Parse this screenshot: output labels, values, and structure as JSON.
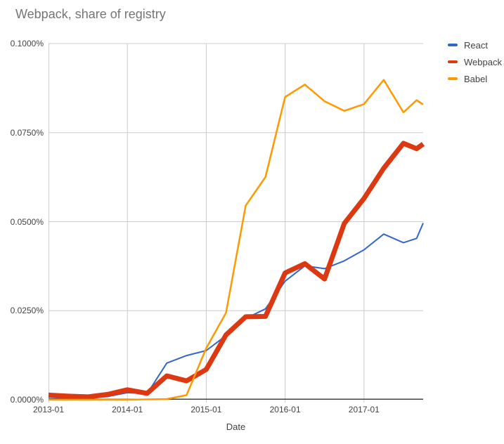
{
  "chart_data": {
    "type": "line",
    "title": "Webpack, share of registry",
    "xlabel": "Date",
    "ylabel": "",
    "legend_position": "right",
    "grid": true,
    "grid_color": "#cccccc",
    "axis_color": "#424242",
    "xlim": [
      2013.0,
      2017.75
    ],
    "ylim": [
      0,
      0.1
    ],
    "y_tick_values": [
      0,
      0.025,
      0.05,
      0.075,
      0.1
    ],
    "y_tick_labels": [
      "0.0000%",
      "0.0250%",
      "0.0500%",
      "0.0750%",
      "0.1000%"
    ],
    "x_tick_values": [
      2013,
      2014,
      2015,
      2016,
      2017
    ],
    "x_tick_labels": [
      "2013-01",
      "2014-01",
      "2015-01",
      "2016-01",
      "2017-01"
    ],
    "categories": [
      "2013-01",
      "2013-04",
      "2013-07",
      "2013-10",
      "2014-01",
      "2014-04",
      "2014-07",
      "2014-10",
      "2015-01",
      "2015-04",
      "2015-07",
      "2015-10",
      "2016-01",
      "2016-04",
      "2016-07",
      "2016-10",
      "2017-01",
      "2017-04",
      "2017-07",
      "2017-09",
      "2017-10"
    ],
    "x": [
      2013.0,
      2013.25,
      2013.5,
      2013.75,
      2014.0,
      2014.25,
      2014.5,
      2014.75,
      2015.0,
      2015.25,
      2015.5,
      2015.75,
      2016.0,
      2016.25,
      2016.5,
      2016.75,
      2017.0,
      2017.25,
      2017.5,
      2017.667,
      2017.75
    ],
    "y_unit": "percent of registry",
    "series": [
      {
        "name": "React",
        "color": "#3366cc",
        "width": 2,
        "values": [
          0.0003,
          0.0003,
          0.0004,
          0.0009,
          0.002,
          0.0017,
          0.0103,
          0.0124,
          0.0138,
          0.018,
          0.0228,
          0.0255,
          0.0333,
          0.0376,
          0.0368,
          0.039,
          0.0421,
          0.0465,
          0.0441,
          0.0453,
          0.0496
        ]
      },
      {
        "name": "Webpack",
        "color": "#dc3912",
        "width": 7,
        "values": [
          0.0013,
          0.001,
          0.0008,
          0.0015,
          0.0028,
          0.0018,
          0.0067,
          0.0053,
          0.0085,
          0.0182,
          0.0233,
          0.0234,
          0.0356,
          0.0382,
          0.0339,
          0.0495,
          0.0565,
          0.065,
          0.072,
          0.0705,
          0.0718
        ]
      },
      {
        "name": "Babel",
        "color": "#ff9900",
        "width": 2.5,
        "values": [
          0.0,
          0.0,
          0.0,
          0.0,
          0.0,
          0.0001,
          0.0002,
          0.0013,
          0.0145,
          0.0244,
          0.0545,
          0.0625,
          0.085,
          0.0885,
          0.0838,
          0.0811,
          0.083,
          0.0898,
          0.0807,
          0.0841,
          0.0829
        ]
      }
    ]
  }
}
